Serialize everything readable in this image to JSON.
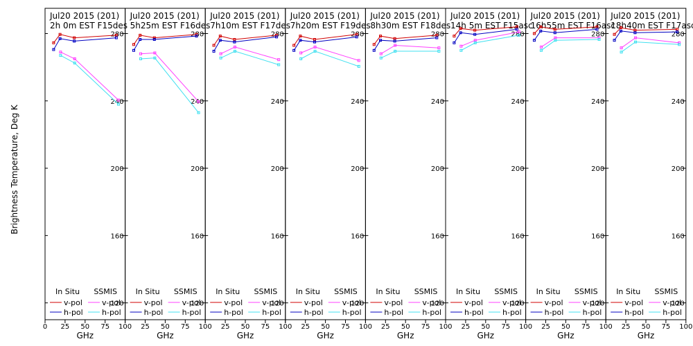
{
  "colors": {
    "in_situ_v": "#d00000",
    "in_situ_h": "#0000c0",
    "ssmis_v": "#ff40ff",
    "ssmis_h": "#40e0f0",
    "frame": "#000000"
  },
  "chart_data": {
    "type": "line",
    "ylabel": "Brightness Temperature, Deg K",
    "xlabel": "GHz",
    "ylim": [
      110,
      295
    ],
    "xlim": [
      0,
      100
    ],
    "y_ticks": [
      120,
      160,
      200,
      240,
      280
    ],
    "x_ticks": [
      0,
      25,
      50,
      75,
      100
    ],
    "x_tick_labels": [
      "0",
      "25",
      "50",
      "75",
      "100"
    ],
    "x_tick_labels_inner": [
      "",
      "25",
      "50",
      "75",
      "100"
    ],
    "legend": {
      "in_situ_label": "In Situ",
      "ssmis_label": "SSMIS",
      "v_label": "v-pol",
      "h_label": "h-pol"
    },
    "panels": [
      {
        "title_line1": "Jul20 2015 (201)",
        "title_line2": "2h 0m  EST F15des",
        "in_situ_v": {
          "x": [
            10.7,
            18.7,
            36.5,
            89.0
          ],
          "y": [
            274.5,
            279.5,
            277.5,
            279.0
          ]
        },
        "in_situ_h": {
          "x": [
            10.7,
            18.7,
            36.5,
            89.0
          ],
          "y": [
            270.5,
            277.0,
            275.5,
            277.5
          ]
        },
        "ssmis_v": {
          "x": [
            19.35,
            37.0,
            91.65
          ],
          "y": [
            269.0,
            265.0,
            240.5
          ]
        },
        "ssmis_h": {
          "x": [
            19.35,
            37.0,
            91.65
          ],
          "y": [
            267.0,
            262.5,
            238.0
          ]
        }
      },
      {
        "title_line1": "Jul20 2015 (201)",
        "title_line2": "5h25m  EST F16des",
        "in_situ_v": {
          "x": [
            10.7,
            18.7,
            36.5,
            89.0
          ],
          "y": [
            273.5,
            279.0,
            277.5,
            279.5
          ]
        },
        "in_situ_h": {
          "x": [
            10.7,
            18.7,
            36.5,
            89.0
          ],
          "y": [
            270.0,
            276.5,
            276.5,
            278.5
          ]
        },
        "ssmis_v": {
          "x": [
            19.35,
            37.0,
            91.65
          ],
          "y": [
            268.0,
            268.5,
            239.5
          ]
        },
        "ssmis_h": {
          "x": [
            19.35,
            37.0,
            91.65
          ],
          "y": [
            265.0,
            265.5,
            233.0
          ]
        }
      },
      {
        "title_line1": "Jul20 2015 (201)",
        "title_line2": "7h10m  EST F17des",
        "in_situ_v": {
          "x": [
            10.7,
            18.7,
            36.5,
            89.0
          ],
          "y": [
            273.0,
            278.5,
            276.5,
            279.0
          ]
        },
        "in_situ_h": {
          "x": [
            10.7,
            18.7,
            36.5,
            89.0
          ],
          "y": [
            269.5,
            276.0,
            275.0,
            278.0
          ]
        },
        "ssmis_v": {
          "x": [
            19.35,
            37.0,
            91.65
          ],
          "y": [
            268.0,
            272.0,
            264.5
          ]
        },
        "ssmis_h": {
          "x": [
            19.35,
            37.0,
            91.65
          ],
          "y": [
            265.5,
            269.5,
            261.5
          ]
        }
      },
      {
        "title_line1": "Jul20 2015 (201)",
        "title_line2": "7h20m  EST F19des",
        "in_situ_v": {
          "x": [
            10.7,
            18.7,
            36.5,
            89.0
          ],
          "y": [
            273.0,
            278.5,
            276.5,
            279.5
          ]
        },
        "in_situ_h": {
          "x": [
            10.7,
            18.7,
            36.5,
            89.0
          ],
          "y": [
            270.0,
            276.0,
            275.0,
            278.0
          ]
        },
        "ssmis_v": {
          "x": [
            19.35,
            37.0,
            91.65
          ],
          "y": [
            268.5,
            272.0,
            264.0
          ]
        },
        "ssmis_h": {
          "x": [
            19.35,
            37.0,
            91.65
          ],
          "y": [
            265.0,
            269.5,
            260.5
          ]
        }
      },
      {
        "title_line1": "Jul20 2015 (201)",
        "title_line2": "8h30m  EST F18des",
        "in_situ_v": {
          "x": [
            10.7,
            18.7,
            36.5,
            89.0
          ],
          "y": [
            273.5,
            278.5,
            277.0,
            279.0
          ]
        },
        "in_situ_h": {
          "x": [
            10.7,
            18.7,
            36.5,
            89.0
          ],
          "y": [
            270.0,
            276.0,
            275.5,
            277.5
          ]
        },
        "ssmis_v": {
          "x": [
            19.35,
            37.0,
            91.65
          ],
          "y": [
            268.0,
            273.0,
            271.5
          ]
        },
        "ssmis_h": {
          "x": [
            19.35,
            37.0,
            91.65
          ],
          "y": [
            265.5,
            269.5,
            269.5
          ]
        }
      },
      {
        "title_line1": "Jul20 2015 (201)",
        "title_line2": "14h 5m  EST F15asc",
        "in_situ_v": {
          "x": [
            10.7,
            18.7,
            36.5,
            89.0
          ],
          "y": [
            278.5,
            283.0,
            282.0,
            284.0
          ]
        },
        "in_situ_h": {
          "x": [
            10.7,
            18.7,
            36.5,
            89.0
          ],
          "y": [
            274.5,
            280.5,
            279.5,
            282.5
          ]
        },
        "ssmis_v": {
          "x": [
            19.35,
            37.0,
            91.65
          ],
          "y": [
            272.5,
            276.0,
            281.0
          ]
        },
        "ssmis_h": {
          "x": [
            19.35,
            37.0,
            91.65
          ],
          "y": [
            270.0,
            274.5,
            279.0
          ]
        }
      },
      {
        "title_line1": "Jul20 2015 (201)",
        "title_line2": "16h55m  EST F16asc",
        "in_situ_v": {
          "x": [
            10.7,
            18.7,
            36.5,
            89.0
          ],
          "y": [
            280.0,
            284.0,
            282.5,
            284.0
          ]
        },
        "in_situ_h": {
          "x": [
            10.7,
            18.7,
            36.5,
            89.0
          ],
          "y": [
            276.0,
            281.5,
            280.5,
            282.5
          ]
        },
        "ssmis_v": {
          "x": [
            19.35,
            37.0,
            91.65
          ],
          "y": [
            272.0,
            277.5,
            277.5
          ]
        },
        "ssmis_h": {
          "x": [
            19.35,
            37.0,
            91.65
          ],
          "y": [
            270.0,
            276.0,
            276.5
          ]
        }
      },
      {
        "title_line1": "Jul20 2015 (201)",
        "title_line2": "18h40m  EST F17asc",
        "in_situ_v": {
          "x": [
            10.7,
            18.7,
            36.5,
            89.0
          ],
          "y": [
            279.5,
            283.5,
            282.0,
            282.5
          ]
        },
        "in_situ_h": {
          "x": [
            10.7,
            18.7,
            36.5,
            89.0
          ],
          "y": [
            276.0,
            281.5,
            280.5,
            281.0
          ]
        },
        "ssmis_v": {
          "x": [
            19.35,
            37.0,
            91.65
          ],
          "y": [
            271.5,
            277.5,
            274.5
          ]
        },
        "ssmis_h": {
          "x": [
            19.35,
            37.0,
            91.65
          ],
          "y": [
            269.0,
            275.0,
            273.5
          ]
        }
      }
    ]
  }
}
